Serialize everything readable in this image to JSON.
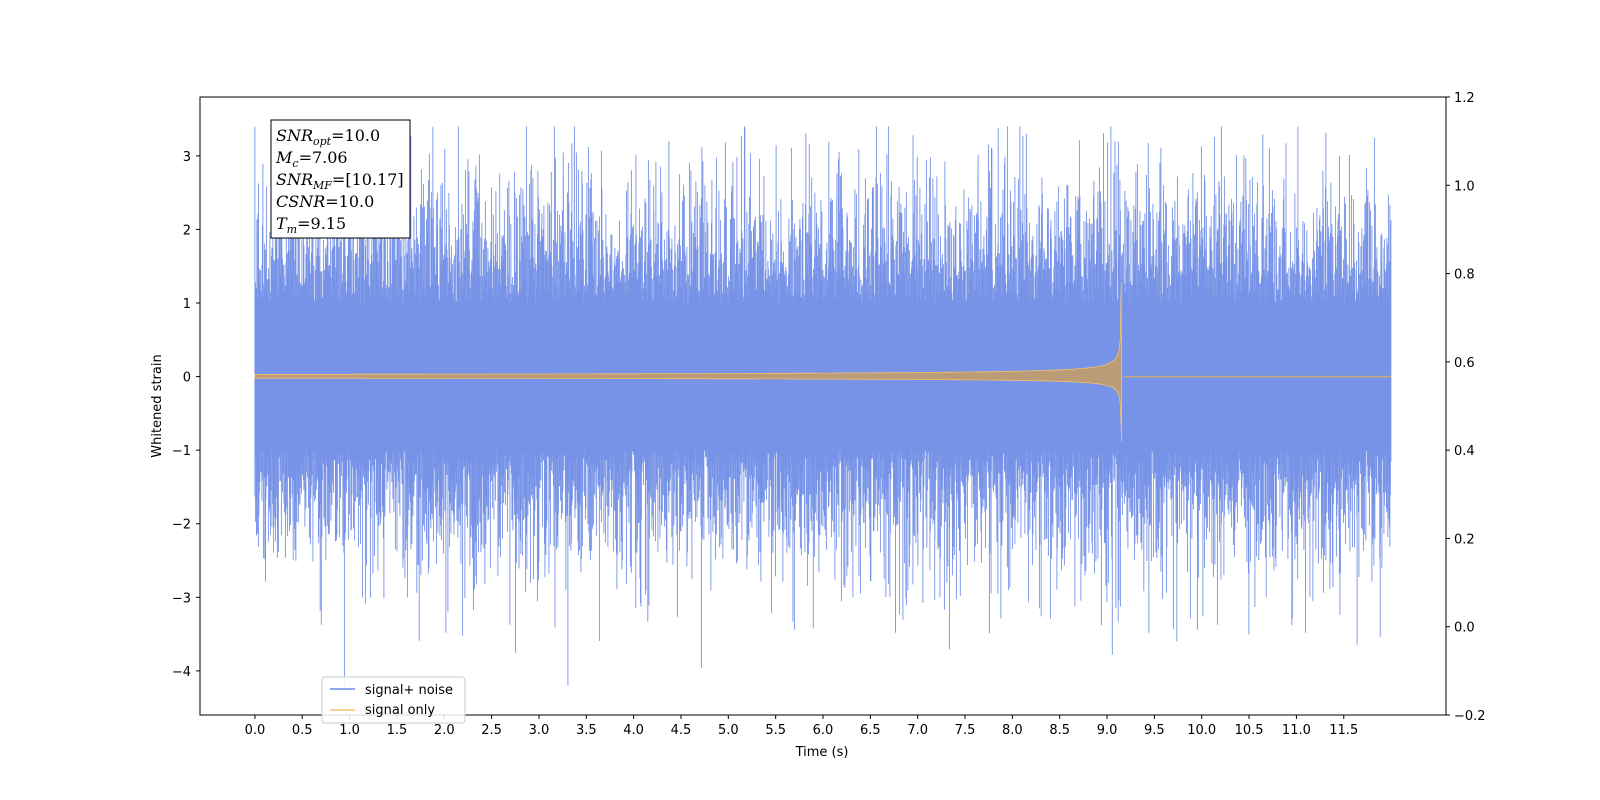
{
  "chart_data": {
    "type": "line",
    "title": "",
    "xlabel": "Time (s)",
    "ylabel": "Whitened strain",
    "xlim": [
      -0.58,
      12.58
    ],
    "ylim": [
      -4.6,
      3.8
    ],
    "ylim_right": [
      -0.2,
      1.2
    ],
    "x_ticks": [
      "0.0",
      "0.5",
      "1.0",
      "1.5",
      "2.0",
      "2.5",
      "3.0",
      "3.5",
      "4.0",
      "4.5",
      "5.0",
      "5.5",
      "6.0",
      "6.5",
      "7.0",
      "7.5",
      "8.0",
      "8.5",
      "9.0",
      "9.5",
      "10.0",
      "10.5",
      "11.0",
      "11.5"
    ],
    "y_ticks": [
      "3",
      "2",
      "1",
      "0",
      "−1",
      "−2",
      "−3",
      "−4"
    ],
    "y_ticks_right": [
      "1.2",
      "1.0",
      "0.8",
      "0.6",
      "0.4",
      "0.2",
      "0.0",
      "−0.2"
    ],
    "grid": false,
    "legend_position": "lower-left",
    "series": [
      {
        "name": "signal+ noise",
        "color": "#6b8ae6",
        "kind": "noise",
        "x_start": 0.0,
        "x_end": 12.0,
        "typical_range": [
          -1.9,
          1.9
        ],
        "peak_max": 3.4,
        "peak_min": -4.2
      },
      {
        "name": "signal only",
        "color": "#f5c06a",
        "kind": "chirp",
        "x_start": 0.0,
        "x_merger": 9.15,
        "x_end": 12.0,
        "start_amplitude": 0.03,
        "peak_max": 1.28,
        "peak_min": -0.88
      }
    ],
    "annotation": {
      "lines": [
        {
          "sym": "SNR",
          "sub": "opt",
          "rest": "=10.0"
        },
        {
          "sym": "M",
          "sub": "c",
          "rest": "=7.06"
        },
        {
          "sym": "SNR",
          "sub": "MF",
          "rest": "=[10.17]"
        },
        {
          "sym": "CSNR",
          "sub": "",
          "rest": "=10.0"
        },
        {
          "sym": "T",
          "sub": "m",
          "rest": "=9.15"
        }
      ]
    }
  }
}
